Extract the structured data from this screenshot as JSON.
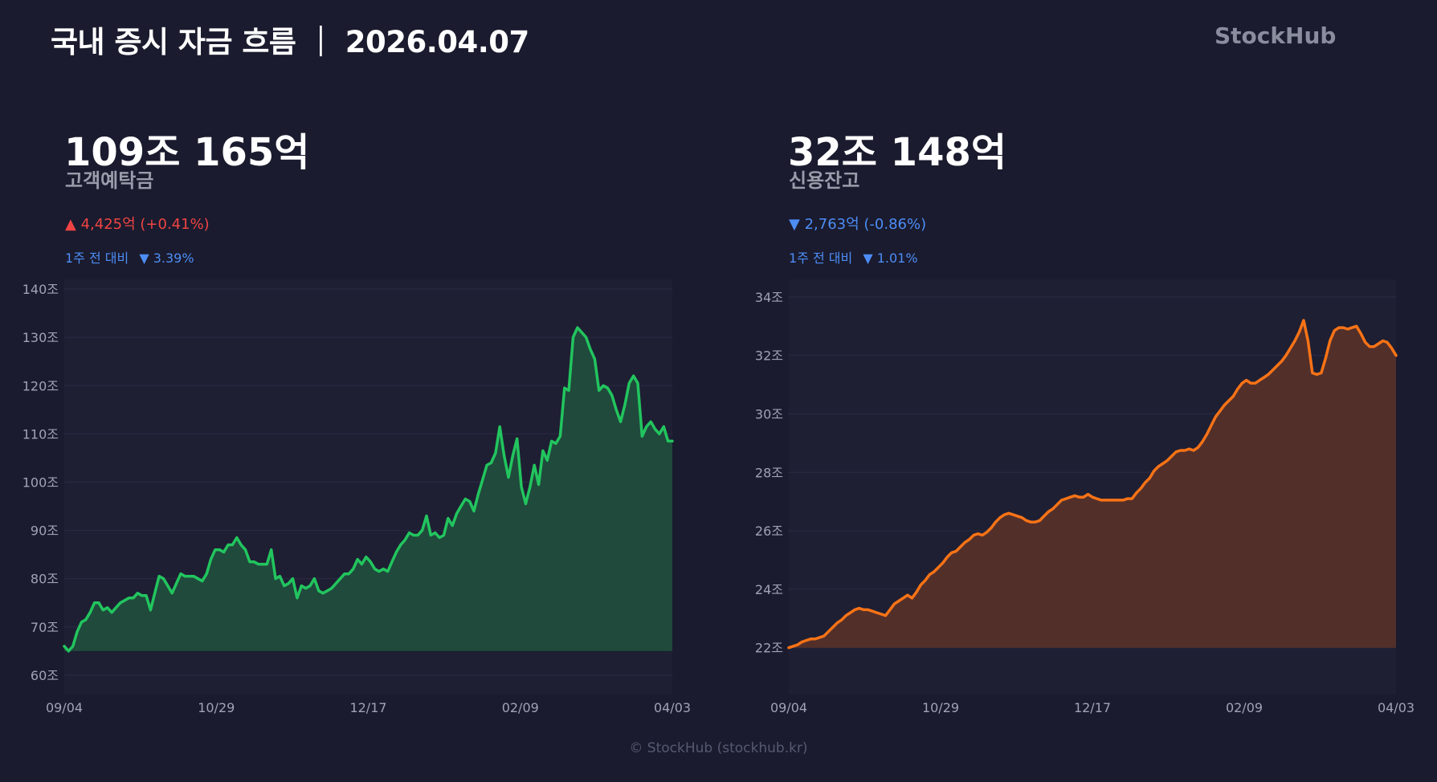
{
  "header": {
    "title": "국내 증시 자금 흐름 ｜ 2026.04.07",
    "brand": "StockHub"
  },
  "footer": "© StockHub (stockhub.kr)",
  "colors": {
    "background": "#1a1b2e",
    "plot_bg": "#1e1f33",
    "deposit_line": "#22c55e",
    "deposit_fill": "#1f4a3c",
    "credit_line": "#f97316",
    "credit_fill": "#532f2a",
    "up": "#ef4444",
    "down": "#4d8df6"
  },
  "panels": {
    "deposit": {
      "value": "109조 165억",
      "label": "고객예탁금",
      "change_icon": "triangle-up-icon",
      "change_arrow": "▲",
      "change_text": "4,425억 (+0.41%)",
      "weekly_label": "1주 전 대비",
      "weekly_arrow": "▼",
      "weekly_value": "3.39%"
    },
    "credit": {
      "value": "32조 148억",
      "label": "신용잔고",
      "change_icon": "triangle-down-icon",
      "change_arrow": "▼",
      "change_text": "2,763억 (-0.86%)",
      "weekly_label": "1주 전 대비",
      "weekly_arrow": "▼",
      "weekly_value": "1.01%"
    }
  },
  "chart_data": [
    {
      "id": "deposit",
      "type": "area",
      "x_ticks": [
        "09/04",
        "10/29",
        "12/17",
        "02/09",
        "04/03"
      ],
      "y_ticks": [
        "60조",
        "70조",
        "80조",
        "90조",
        "100조",
        "110조",
        "120조",
        "130조",
        "140조"
      ],
      "ylim": [
        56,
        142
      ],
      "x_range": [
        "09/04",
        "04/03"
      ],
      "fill_base": 65,
      "grid": true,
      "legend": "none",
      "values": [
        66,
        65,
        66,
        69,
        71,
        71.5,
        73,
        75,
        75,
        73.5,
        74,
        73,
        74,
        75,
        75.5,
        76,
        76,
        77,
        76.5,
        76.5,
        73.5,
        77,
        80.5,
        80,
        78.5,
        77,
        79,
        81,
        80.5,
        80.5,
        80.5,
        80,
        79.5,
        81,
        84,
        86,
        86,
        85.5,
        87,
        87,
        88.5,
        87,
        86,
        83.5,
        83.5,
        83,
        83,
        83,
        86,
        80,
        80.5,
        78.5,
        79,
        80,
        76,
        78.5,
        78,
        78.5,
        80,
        77.5,
        77,
        77.5,
        78,
        79,
        80,
        81,
        81,
        82,
        84,
        83,
        84.5,
        83.5,
        82,
        81.5,
        82,
        81.5,
        83.5,
        85.5,
        87,
        88,
        89.5,
        89,
        89,
        90,
        93,
        89,
        89.5,
        88.5,
        89,
        92.5,
        91,
        93.5,
        95,
        96.5,
        96,
        94,
        97.5,
        100.5,
        103.5,
        104,
        106,
        111.5,
        105.5,
        101,
        105.5,
        109,
        99,
        95.5,
        99,
        103.5,
        99.5,
        106.5,
        104.5,
        108.5,
        108,
        109.5,
        119.5,
        119,
        130,
        132,
        131,
        130,
        127.5,
        125.5,
        119,
        120,
        119.5,
        118,
        115,
        112.5,
        116,
        120.5,
        122,
        120.5,
        109.5,
        111.5,
        112.5,
        111,
        110,
        111.5,
        108.5,
        108.5
      ]
    },
    {
      "id": "credit",
      "type": "area",
      "x_ticks": [
        "09/04",
        "10/29",
        "12/17",
        "02/09",
        "04/03"
      ],
      "y_ticks": [
        "22조",
        "24조",
        "26조",
        "28조",
        "30조",
        "32조",
        "34조"
      ],
      "ylim": [
        20.4,
        34.6
      ],
      "x_range": [
        "09/04",
        "04/03"
      ],
      "fill_base": 22,
      "grid": true,
      "legend": "none",
      "values": [
        22,
        22.05,
        22.1,
        22.2,
        22.25,
        22.3,
        22.3,
        22.35,
        22.4,
        22.55,
        22.7,
        22.85,
        22.95,
        23.1,
        23.2,
        23.3,
        23.35,
        23.3,
        23.3,
        23.25,
        23.2,
        23.15,
        23.1,
        23.3,
        23.5,
        23.6,
        23.7,
        23.8,
        23.7,
        23.9,
        24.15,
        24.3,
        24.5,
        24.6,
        24.75,
        24.9,
        25.1,
        25.25,
        25.3,
        25.45,
        25.6,
        25.7,
        25.85,
        25.9,
        25.85,
        25.95,
        26.1,
        26.3,
        26.45,
        26.55,
        26.6,
        26.55,
        26.5,
        26.45,
        26.35,
        26.3,
        26.3,
        26.35,
        26.5,
        26.65,
        26.75,
        26.9,
        27.05,
        27.1,
        27.15,
        27.2,
        27.15,
        27.15,
        27.25,
        27.15,
        27.1,
        27.05,
        27.05,
        27.05,
        27.05,
        27.05,
        27.05,
        27.1,
        27.1,
        27.3,
        27.45,
        27.65,
        27.8,
        28.05,
        28.2,
        28.3,
        28.4,
        28.55,
        28.7,
        28.75,
        28.75,
        28.8,
        28.75,
        28.85,
        29.05,
        29.3,
        29.6,
        29.9,
        30.1,
        30.3,
        30.45,
        30.6,
        30.85,
        31.05,
        31.15,
        31.05,
        31.05,
        31.15,
        31.25,
        31.35,
        31.5,
        31.65,
        31.8,
        32,
        32.25,
        32.5,
        32.8,
        33.2,
        32.5,
        31.4,
        31.35,
        31.4,
        31.9,
        32.5,
        32.85,
        32.95,
        32.95,
        32.9,
        32.95,
        33,
        32.75,
        32.45,
        32.3,
        32.3,
        32.4,
        32.5,
        32.45,
        32.25,
        32.0
      ]
    }
  ]
}
